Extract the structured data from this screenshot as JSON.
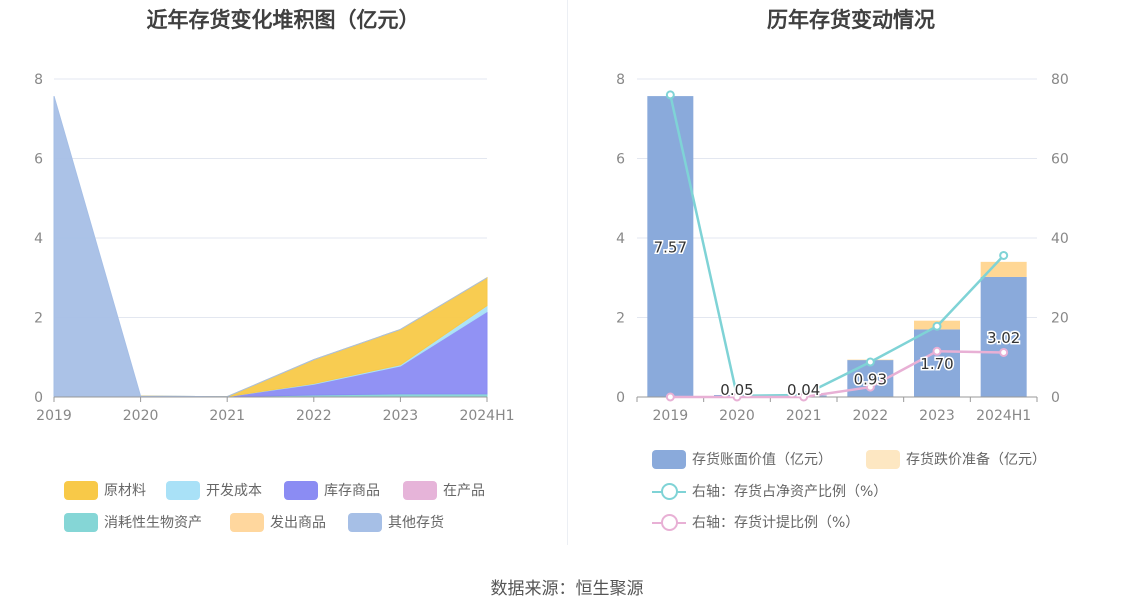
{
  "source": "数据来源：恒生聚源",
  "chart_data": [
    {
      "type": "area",
      "stacked": true,
      "title": "近年存货变化堆积图（亿元）",
      "categories": [
        "2019",
        "2020",
        "2021",
        "2022",
        "2023",
        "2024H1"
      ],
      "ylim": [
        0,
        8
      ],
      "yticks": [
        0,
        2,
        4,
        6,
        8
      ],
      "legend_position": "bottom",
      "series": [
        {
          "name": "消耗性生物资产",
          "color": "#85d6d6",
          "values": [
            0,
            0.02,
            0.01,
            0.05,
            0.08,
            0.08
          ]
        },
        {
          "name": "库存商品",
          "color": "#8b8cf3",
          "values": [
            0,
            0,
            0,
            0.27,
            0.7,
            2.07
          ]
        },
        {
          "name": "开发成本",
          "color": "#a9e1f7",
          "values": [
            0,
            0,
            0,
            0.02,
            0.03,
            0.15
          ]
        },
        {
          "name": "在产品",
          "color": "#e6b4d9",
          "values": [
            0,
            0,
            0,
            0,
            0,
            0
          ]
        },
        {
          "name": "原材料",
          "color": "#f8c948",
          "values": [
            0,
            0,
            0,
            0.6,
            0.89,
            0.7
          ]
        },
        {
          "name": "发出商品",
          "color": "#ffd79e",
          "values": [
            0,
            0,
            0,
            0,
            0,
            0
          ]
        },
        {
          "name": "其他存货",
          "color": "#a6bfe6",
          "values": [
            7.57,
            0,
            0,
            0,
            0,
            0
          ]
        }
      ],
      "legend_order": [
        "原材料",
        "开发成本",
        "库存商品",
        "在产品",
        "消耗性生物资产",
        "发出商品",
        "其他存货"
      ]
    },
    {
      "type": "bar",
      "stacked": true,
      "title": "历年存货变动情况",
      "categories": [
        "2019",
        "2020",
        "2021",
        "2022",
        "2023",
        "2024H1"
      ],
      "ylim": [
        0,
        8
      ],
      "yticks": [
        0,
        2,
        4,
        6,
        8
      ],
      "y2lim": [
        0,
        80
      ],
      "y2ticks": [
        0,
        20,
        40,
        60,
        80
      ],
      "legend_position": "bottom",
      "series": [
        {
          "name": "存货账面价值（亿元）",
          "color": "#8aaadb",
          "values": [
            7.57,
            0.05,
            0.04,
            0.93,
            1.7,
            3.02
          ],
          "labels": [
            "7.57",
            "0.05",
            "0.04",
            "0.93",
            "1.70",
            "3.02"
          ]
        },
        {
          "name": "存货跌价准备（亿元）",
          "color": "#ffd795",
          "legend_color": "#fde7c2",
          "values": [
            0,
            0,
            0,
            0.01,
            0.22,
            0.38
          ]
        }
      ],
      "lines": [
        {
          "name": "右轴：存货占净资产比例（%）",
          "color": "#7fd3d6",
          "axis": "right",
          "values": [
            76.0,
            0.3,
            0.5,
            8.8,
            17.8,
            35.6
          ]
        },
        {
          "name": "右轴：存货计提比例（%）",
          "color": "#e8b0d5",
          "axis": "right",
          "values": [
            0,
            0,
            0,
            2.5,
            11.5,
            11.2
          ]
        }
      ]
    }
  ]
}
